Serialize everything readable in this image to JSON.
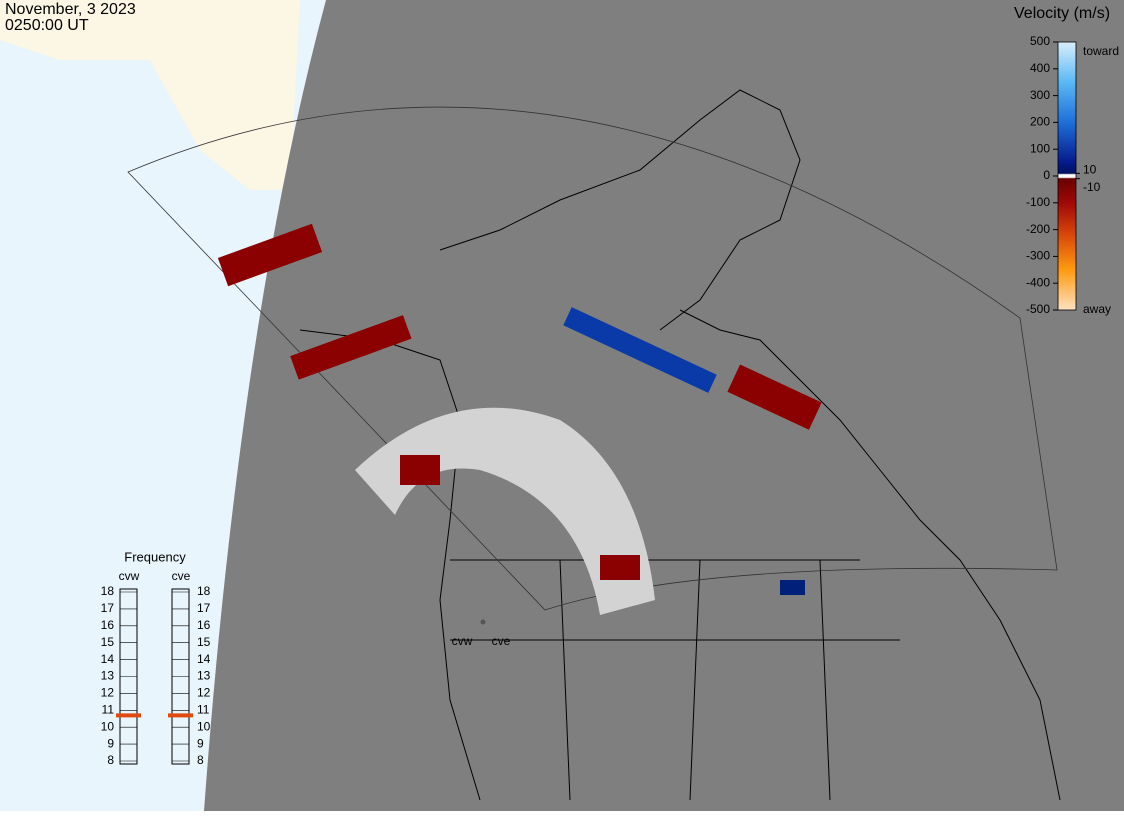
{
  "header": {
    "date": "November, 3 2023",
    "time": "0250:00 UT"
  },
  "velocity_scale": {
    "title": "Velocity (m/s)",
    "range": [
      -500,
      500
    ],
    "ticks": [
      500,
      400,
      300,
      200,
      100,
      0,
      -100,
      -200,
      -300,
      -400,
      -500
    ],
    "inner_ticks": [
      10,
      -10
    ],
    "toward": "toward",
    "away": "away"
  },
  "frequency": {
    "title": "Frequency",
    "range": [
      8,
      18
    ],
    "radars": [
      {
        "name": "cvw",
        "ticks": [
          18,
          17,
          16,
          15,
          14,
          13,
          12,
          11,
          10,
          9,
          8
        ],
        "value": 10.7
      },
      {
        "name": "cve",
        "ticks": [
          18,
          17,
          16,
          15,
          14,
          13,
          12,
          11,
          10,
          9,
          8
        ],
        "value": 10.7
      }
    ]
  },
  "map": {
    "sites": [
      "cvw",
      "cve"
    ]
  }
}
